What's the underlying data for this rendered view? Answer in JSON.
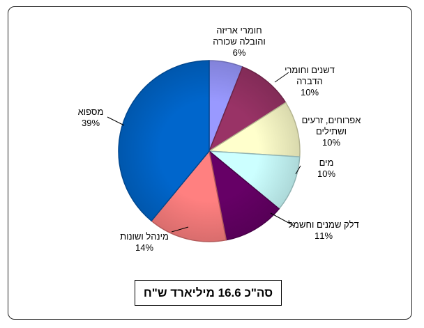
{
  "chart_data": {
    "type": "pie",
    "slices": [
      {
        "name": "חומרי אריזה והובלה שכורה",
        "label_lines": [
          "חומרי אריזה",
          "והובלה שכורה"
        ],
        "value": 6,
        "value_label": "6%",
        "color": "#9999ff"
      },
      {
        "name": "דשנים וחומרי הדברה",
        "label_lines": [
          "דשנים וחומרי",
          "הדברה"
        ],
        "value": 10,
        "value_label": "10%",
        "color": "#993366"
      },
      {
        "name": "אפרוחים, זרעים ושתילים",
        "label_lines": [
          "אפרוחים, זרעים",
          "ושתילים"
        ],
        "value": 10,
        "value_label": "10%",
        "color": "#ffffcc"
      },
      {
        "name": "מים",
        "label_lines": [
          "מים"
        ],
        "value": 10,
        "value_label": "10%",
        "color": "#ccffff"
      },
      {
        "name": "דלק שמנים וחשמל",
        "label_lines": [
          "דלק שמנים וחשמל"
        ],
        "value": 11,
        "value_label": "11%",
        "color": "#660066"
      },
      {
        "name": "מינהל ושונות",
        "label_lines": [
          "מינהל ושונות"
        ],
        "value": 14,
        "value_label": "14%",
        "color": "#ff8080"
      },
      {
        "name": "מספוא",
        "label_lines": [
          "מספוא"
        ],
        "value": 39,
        "value_label": "39%",
        "color": "#0066cc"
      }
    ]
  },
  "total_box": {
    "text": "סה\"כ 16.6 מיליארד ש\"ח"
  }
}
